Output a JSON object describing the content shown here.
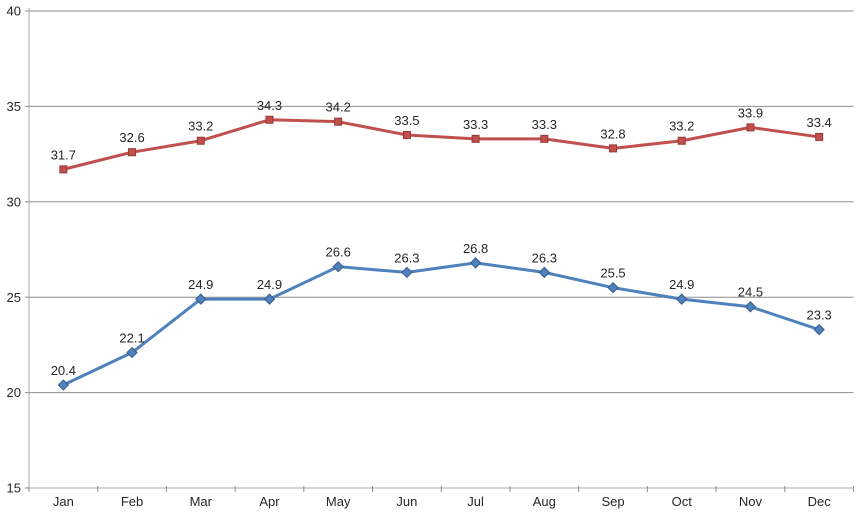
{
  "chart_data": {
    "type": "line",
    "title": "",
    "xlabel": "",
    "ylabel": "",
    "categories": [
      "Jan",
      "Feb",
      "Mar",
      "Apr",
      "May",
      "Jun",
      "Jul",
      "Aug",
      "Sep",
      "Oct",
      "Nov",
      "Dec"
    ],
    "series": [
      {
        "name": "blue-diamond-series",
        "marker": "diamond",
        "color": "#4F81BD",
        "border_color": "#385D8A",
        "values": [
          20.4,
          22.1,
          24.9,
          24.9,
          26.6,
          26.3,
          26.8,
          26.3,
          25.5,
          24.9,
          24.5,
          23.3
        ]
      },
      {
        "name": "red-square-series",
        "marker": "square",
        "color": "#C0504D",
        "border_color": "#953735",
        "values": [
          31.7,
          32.6,
          33.2,
          34.3,
          34.2,
          33.5,
          33.3,
          33.3,
          32.8,
          33.2,
          33.9,
          33.4
        ]
      }
    ],
    "ylim": [
      15,
      40
    ],
    "yticks": [
      15,
      20,
      25,
      30,
      35,
      40
    ],
    "grid": true,
    "legend": "none",
    "data_labels": true,
    "data_label_decimals": 1,
    "colors": {
      "gridline": "#8E8E8E",
      "axis": "#ABABAB",
      "tick": "#8C8C8C",
      "text": "#262626",
      "plot_background": "#FFFFFF"
    }
  }
}
